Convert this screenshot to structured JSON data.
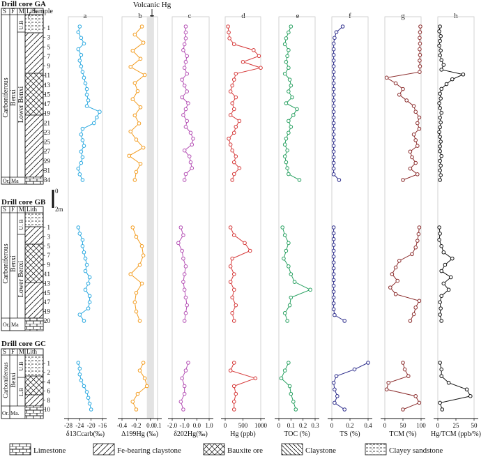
{
  "figure": {
    "annotation": "Volcanic Hg",
    "cores": [
      {
        "title": "Drill core GA",
        "samples": [
          "1",
          "3",
          "5",
          "7",
          "9",
          "11",
          "13",
          "15",
          "17",
          "19",
          "21",
          "23",
          "25",
          "27",
          "29",
          "31",
          "34"
        ]
      },
      {
        "title": "Drill core GB",
        "samples": [
          "1",
          "3",
          "5",
          "7",
          "9",
          "11",
          "13",
          "15",
          "17",
          "19",
          "20"
        ]
      },
      {
        "title": "Drill core GC",
        "samples": [
          "1",
          "2",
          "4",
          "6",
          "8",
          "10"
        ]
      }
    ],
    "column_heads": {
      "s": "S",
      "f": "F",
      "m": "M",
      "lith": "Lith",
      "sample": "Sample"
    },
    "strat": {
      "period": "Carboniferous",
      "period_b": "Carboniferous",
      "period_c": "Carboniferous",
      "formation": "Benxi",
      "formation_b": "Benxi",
      "formation_c": "Benxi",
      "upper": "U.B",
      "upper_b": "U. B",
      "upper_c": "U.B",
      "lower": "Lower Benxi",
      "lower_b": "Lower Benxi",
      "lower_c": "L.B",
      "or": "Or.",
      "ma": "Ma",
      "or_c": "Or.",
      "ma_c": "Ma."
    },
    "scale_bar": {
      "top": "0",
      "bottom": "2m"
    },
    "legend": [
      "Limestone",
      "Fe-bearing claystone",
      "Bauxite ore",
      "Claystone",
      "Clayey sandstone"
    ]
  },
  "chart_data": [
    {
      "type": "line",
      "panel": "a",
      "xlabel": "δ13Ccarb(‰)",
      "xlim": [
        -28,
        -16
      ],
      "ticks": [
        "-28",
        "-24",
        "-20",
        "-16"
      ],
      "series": [
        {
          "core": "GA",
          "x": [
            -24,
            -24.5,
            -23.5,
            -22.5,
            -24.5,
            -23.5,
            -24,
            -23.5,
            -23,
            -22.5,
            -22,
            -21.5,
            -21.5,
            -21,
            -21.5,
            -17,
            -18,
            -19,
            -23,
            -23.5,
            -23,
            -22.5,
            -23.5,
            -23,
            -23.5,
            -24.5,
            -24,
            -23
          ],
          "y": [
            1,
            2,
            3,
            4,
            5,
            6,
            7,
            8,
            9,
            10,
            11,
            12,
            13,
            14,
            15,
            16,
            17,
            18,
            19,
            20,
            21,
            22,
            23,
            24,
            25,
            26,
            27,
            28
          ]
        },
        {
          "core": "GB",
          "x": [
            -24.5,
            -24,
            -23,
            -23,
            -22.5,
            -22,
            -21.5,
            -22,
            -20.5,
            -21,
            -22,
            -20.5,
            -20.5,
            -21,
            -24,
            -22.5
          ],
          "y": [
            1,
            2,
            3,
            4,
            5,
            6,
            7,
            8,
            9,
            10,
            11,
            12,
            13,
            14,
            15,
            16
          ]
        },
        {
          "core": "GC",
          "x": [
            -24.5,
            -24,
            -24,
            -23.5,
            -22.5,
            -21.5,
            -21,
            -20.5,
            -20
          ],
          "y": [
            1,
            2,
            3,
            4,
            5,
            6,
            7,
            8,
            9
          ]
        }
      ]
    },
    {
      "type": "line",
      "panel": "b",
      "xlabel": "Δ199Hg (‰)",
      "xlim": [
        -0.4,
        0.1
      ],
      "ticks": [
        "-0.4",
        "-0.2",
        "0.0",
        "0.1"
      ],
      "band": [
        -0.05,
        0.05
      ],
      "series": [
        {
          "core": "GA",
          "x": [
            -0.12,
            -0.22,
            -0.1,
            -0.25,
            -0.14,
            -0.28,
            -0.08,
            -0.22,
            -0.18,
            -0.25,
            -0.14,
            -0.22,
            -0.16,
            -0.28,
            -0.2,
            -0.1,
            -0.3,
            -0.14,
            -0.2,
            -0.22
          ],
          "y": [
            1,
            2,
            3,
            4,
            5,
            6,
            7,
            8,
            9,
            10,
            11,
            12,
            13,
            14,
            15,
            16,
            17,
            18,
            19,
            20
          ]
        },
        {
          "core": "GB",
          "x": [
            -0.25,
            -0.2,
            -0.12,
            -0.1,
            -0.15,
            -0.28,
            -0.12,
            -0.2,
            -0.22,
            -0.2,
            -0.15
          ],
          "y": [
            1,
            2,
            3,
            4,
            5,
            6,
            7,
            8,
            9,
            10,
            11
          ]
        },
        {
          "core": "GC",
          "x": [
            -0.1,
            -0.15,
            -0.08,
            -0.05,
            -0.18,
            -0.25,
            -0.2
          ],
          "y": [
            1,
            2,
            3,
            4,
            5,
            6,
            7
          ]
        }
      ]
    },
    {
      "type": "line",
      "panel": "c",
      "xlabel": "δ202Hg(‰)",
      "xlim": [
        -2.0,
        1.0
      ],
      "ticks": [
        "-2.0",
        "-1.0",
        "0.0",
        "1.0"
      ],
      "series": [
        {
          "core": "GA",
          "x": [
            -0.9,
            -0.9,
            -0.9,
            -1.0,
            -1.1,
            -0.8,
            -0.9,
            -1.0,
            -0.8,
            -1.2,
            -1.0,
            -0.8,
            -1.2,
            -0.7,
            -0.9,
            -1.1,
            -0.8,
            -0.9,
            -0.5,
            -0.3,
            -0.4,
            -1.0,
            -0.6,
            -0.5,
            -0.4,
            -0.9,
            -1.0
          ],
          "y": [
            1,
            2,
            3,
            4,
            5,
            6,
            7,
            8,
            9,
            10,
            11,
            12,
            13,
            14,
            15,
            16,
            17,
            18,
            19,
            20,
            21,
            22,
            23,
            24,
            25,
            26,
            27
          ]
        },
        {
          "core": "GB",
          "x": [
            -1.3,
            -1.1,
            -1.5,
            -1.2,
            -1.1,
            -0.9,
            -1.0,
            -1.1,
            -1.0,
            -0.9,
            -0.8,
            -0.9,
            -1.0
          ],
          "y": [
            1,
            2,
            3,
            4,
            5,
            6,
            7,
            8,
            9,
            10,
            11,
            12,
            13
          ]
        },
        {
          "core": "GC",
          "x": [
            -0.7,
            -0.9,
            -1.2,
            -1.0,
            -1.0,
            -1.3,
            -1.1
          ],
          "y": [
            1,
            2,
            3,
            4,
            5,
            6,
            7
          ]
        }
      ]
    },
    {
      "type": "line",
      "panel": "d",
      "xlabel": "Hg (ppb)",
      "xlim": [
        0,
        1000
      ],
      "ticks": [
        "0",
        "500",
        "1000"
      ],
      "series": [
        {
          "core": "GA",
          "x": [
            80,
            100,
            120,
            250,
            800,
            950,
            500,
            1000,
            300,
            250,
            200,
            150,
            300,
            200,
            250,
            150,
            400,
            300,
            250,
            100,
            150,
            200,
            300,
            250,
            400,
            250,
            200
          ],
          "y": [
            1,
            2,
            3,
            4,
            5,
            6,
            7,
            8,
            9,
            10,
            11,
            12,
            13,
            14,
            15,
            16,
            17,
            18,
            19,
            20,
            21,
            22,
            23,
            24,
            25,
            26,
            27
          ]
        },
        {
          "core": "GB",
          "x": [
            150,
            250,
            550,
            700,
            200,
            150,
            250,
            150,
            250,
            200,
            300,
            200,
            250
          ],
          "y": [
            1,
            2,
            3,
            4,
            5,
            6,
            7,
            8,
            9,
            10,
            11,
            12,
            13
          ]
        },
        {
          "core": "GC",
          "x": [
            250,
            150,
            850,
            250,
            300,
            250,
            250
          ],
          "y": [
            1,
            2,
            3,
            4,
            5,
            6,
            7
          ]
        }
      ]
    },
    {
      "type": "line",
      "panel": "e",
      "xlabel": "TOC (%)",
      "xlim": [
        0,
        0.3
      ],
      "ticks": [
        "0",
        "0.1",
        "0.2",
        "0.3"
      ],
      "series": [
        {
          "core": "GA",
          "x": [
            0.1,
            0.08,
            0.06,
            0.05,
            0.08,
            0.07,
            0.06,
            0.08,
            0.05,
            0.09,
            0.1,
            0.08,
            0.11,
            0.06,
            0.15,
            0.12,
            0.08,
            0.1,
            0.08,
            0.06,
            0.05,
            0.07,
            0.05,
            0.06,
            0.07,
            0.08,
            0.17
          ],
          "y": [
            1,
            2,
            3,
            4,
            5,
            6,
            7,
            8,
            9,
            10,
            11,
            12,
            13,
            14,
            15,
            16,
            17,
            18,
            19,
            20,
            21,
            22,
            23,
            24,
            25,
            26,
            27
          ]
        },
        {
          "core": "GB",
          "x": [
            0.03,
            0.05,
            0.08,
            0.06,
            0.04,
            0.08,
            0.1,
            0.13,
            0.26,
            0.1,
            0.09,
            0.05,
            0.07
          ],
          "y": [
            1,
            2,
            3,
            4,
            5,
            6,
            7,
            8,
            9,
            10,
            11,
            12,
            13
          ]
        },
        {
          "core": "GC",
          "x": [
            0.08,
            0.05,
            0.02,
            0.09,
            0.1,
            0.12,
            0.14
          ],
          "y": [
            1,
            2,
            3,
            4,
            5,
            6,
            7
          ]
        }
      ]
    },
    {
      "type": "line",
      "panel": "f",
      "xlabel": "TS (%)",
      "xlim": [
        0,
        0.4
      ],
      "ticks": [
        "0",
        "0.2",
        "0.4"
      ],
      "series": [
        {
          "core": "GA",
          "x": [
            0.12,
            0.05,
            0.03,
            0.02,
            0.02,
            0.02,
            0.02,
            0.02,
            0.02,
            0.02,
            0.02,
            0.02,
            0.02,
            0.02,
            0.02,
            0.02,
            0.02,
            0.02,
            0.02,
            0.02,
            0.02,
            0.02,
            0.02,
            0.02,
            0.02,
            0.02,
            0.02,
            0.08
          ],
          "y": [
            1,
            2,
            3,
            4,
            5,
            6,
            7,
            8,
            9,
            10,
            11,
            12,
            13,
            14,
            15,
            16,
            17,
            18,
            19,
            20,
            21,
            22,
            23,
            24,
            25,
            26,
            27,
            28
          ]
        },
        {
          "core": "GB",
          "x": [
            0.02,
            0.02,
            0.02,
            0.02,
            0.02,
            0.02,
            0.02,
            0.02,
            0.02,
            0.02,
            0.02,
            0.02,
            0.02,
            0.02,
            0.02,
            0.03,
            0.14
          ],
          "y": [
            1,
            2,
            3,
            4,
            5,
            6,
            7,
            8,
            9,
            10,
            11,
            12,
            13,
            14,
            15,
            16,
            17
          ]
        },
        {
          "core": "GC",
          "x": [
            0.4,
            0.25,
            0.05,
            0.02,
            0.03,
            0.06,
            0.03,
            0.14
          ],
          "y": [
            1,
            2,
            3,
            4,
            5,
            6,
            7,
            8
          ]
        }
      ]
    },
    {
      "type": "line",
      "panel": "g",
      "xlabel": "TCM (%)",
      "xlim": [
        0,
        100
      ],
      "ticks": [
        "0",
        "50",
        "100"
      ],
      "series": [
        {
          "core": "GA",
          "x": [
            98,
            97,
            96,
            97,
            96,
            97,
            96,
            97,
            96,
            5,
            30,
            50,
            40,
            60,
            80,
            85,
            95,
            90,
            95,
            80,
            85,
            90,
            70,
            75,
            85,
            70,
            90,
            50
          ],
          "y": [
            1,
            2,
            3,
            4,
            5,
            6,
            7,
            8,
            9,
            10,
            11,
            12,
            13,
            14,
            15,
            16,
            17,
            18,
            19,
            20,
            21,
            22,
            23,
            24,
            25,
            26,
            27,
            28
          ]
        },
        {
          "core": "GB",
          "x": [
            95,
            93,
            90,
            85,
            75,
            40,
            30,
            20,
            35,
            15,
            30,
            95,
            85,
            80,
            70
          ],
          "y": [
            1,
            2,
            3,
            4,
            5,
            6,
            7,
            8,
            9,
            10,
            11,
            12,
            13,
            14,
            15
          ]
        },
        {
          "core": "GC",
          "x": [
            50,
            55,
            65,
            10,
            5,
            85,
            95,
            50
          ],
          "y": [
            1,
            2,
            3,
            4,
            5,
            6,
            7,
            8
          ]
        }
      ]
    },
    {
      "type": "line",
      "panel": "h",
      "xlabel": "Hg/TCM (ppb/%)",
      "xlim": [
        0,
        50
      ],
      "ticks": [
        "0",
        "25",
        "50"
      ],
      "series": [
        {
          "core": "GA",
          "x": [
            3,
            2,
            4,
            3,
            2,
            4,
            3,
            5,
            8,
            5,
            35,
            20,
            12,
            5,
            3,
            4,
            2,
            3,
            5,
            3,
            4,
            3,
            2,
            3,
            4,
            3,
            3,
            5,
            3,
            4,
            3,
            4,
            3
          ],
          "y": [
            1,
            2,
            3,
            4,
            5,
            6,
            7,
            8,
            9,
            10,
            11,
            12,
            13,
            14,
            15,
            16,
            17,
            18,
            19,
            20,
            21,
            22,
            23,
            24,
            25,
            26,
            27,
            28,
            29,
            30,
            31,
            32,
            33
          ]
        },
        {
          "core": "GB",
          "x": [
            2,
            3,
            2,
            5,
            8,
            20,
            10,
            5,
            18,
            8,
            15,
            5,
            3,
            4,
            3,
            5
          ],
          "y": [
            1,
            2,
            3,
            4,
            5,
            6,
            7,
            8,
            9,
            10,
            11,
            12,
            13,
            14,
            15,
            16
          ]
        },
        {
          "core": "GC",
          "x": [
            3,
            5,
            5,
            15,
            40,
            45,
            3,
            6
          ],
          "y": [
            1,
            2,
            3,
            4,
            5,
            6,
            7,
            8
          ]
        }
      ]
    }
  ]
}
